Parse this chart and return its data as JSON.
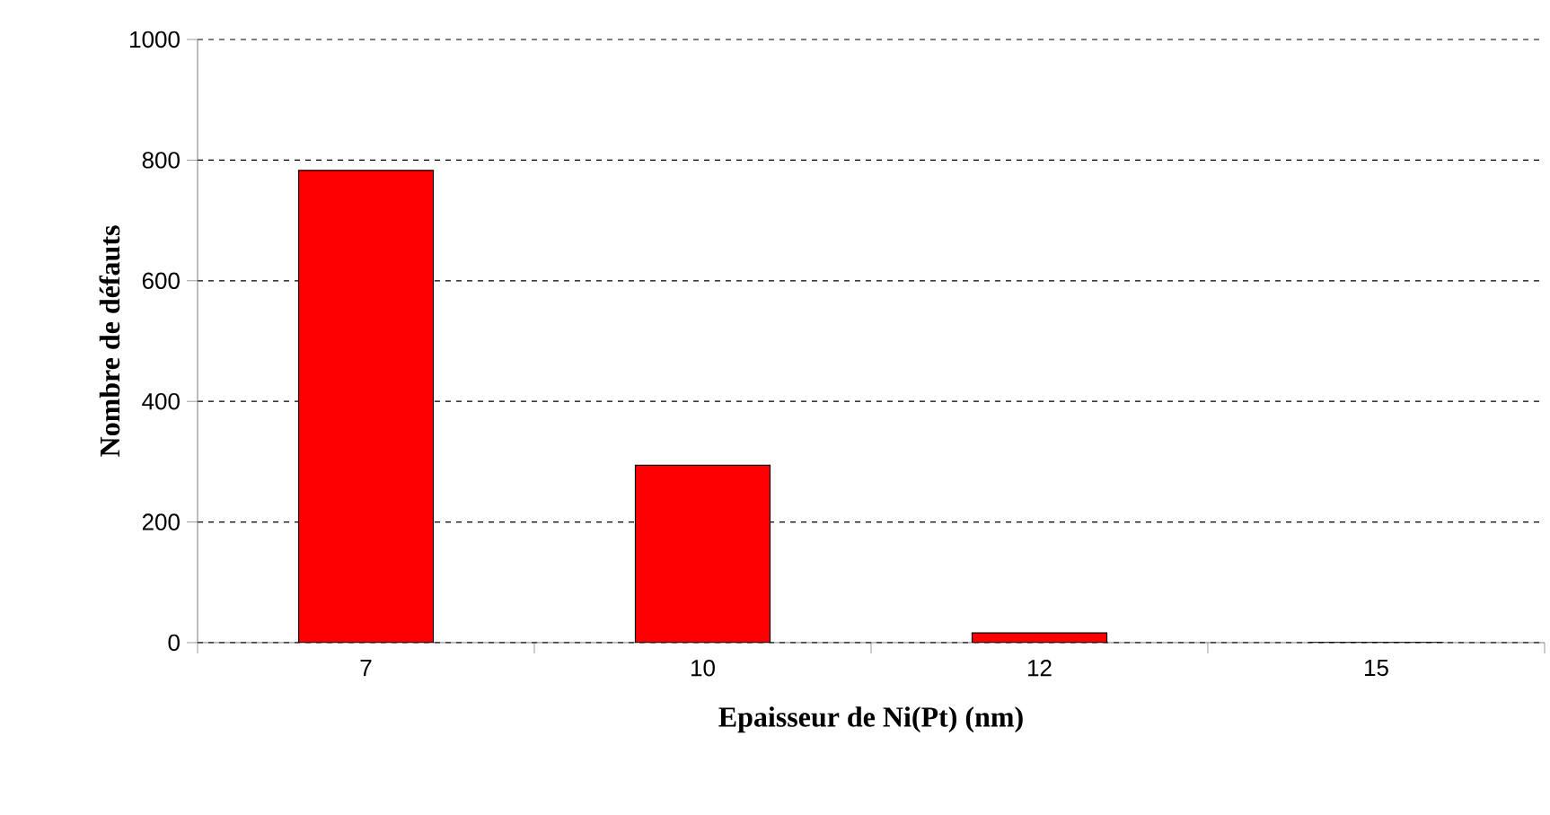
{
  "chart_data": {
    "type": "bar",
    "xlabel": "Epaisseur de Ni(Pt) (nm)",
    "ylabel": "Nombre de défauts",
    "categories": [
      "7",
      "10",
      "12",
      "15"
    ],
    "values": [
      783,
      294,
      16,
      0
    ],
    "color": "#ff0000",
    "ylim": [
      0,
      1000
    ],
    "yticks": [
      0,
      200,
      400,
      600,
      800,
      1000
    ],
    "grid": "y"
  }
}
